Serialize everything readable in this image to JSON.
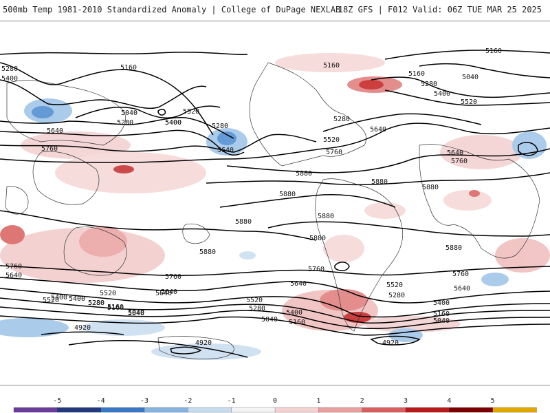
{
  "header": {
    "left_title": "500mb Temp 1981-2010 Standardized Anomaly | College of DuPage NEXLAB",
    "right_title": "18Z GFS | F012 Valid: 06Z TUE MAR 25 2025"
  },
  "colorbar": {
    "ticks": [
      "-5",
      "-4",
      "-3",
      "-2",
      "-1",
      "0",
      "1",
      "2",
      "3",
      "4",
      "5"
    ],
    "colors": [
      "#6a3d9a",
      "#24397d",
      "#3a78c5",
      "#86b3df",
      "#c8dcf0",
      "#f4f4f4",
      "#f4d2d2",
      "#eaa0a0",
      "#d95f5f",
      "#b81a1a",
      "#7a0000",
      "#e0a800"
    ]
  },
  "contour_labels": [
    "5280",
    "5400",
    "5160",
    "5040",
    "5280",
    "5400",
    "5520",
    "5640",
    "5760",
    "5280",
    "5400",
    "5640",
    "5160",
    "5280",
    "5520",
    "5640",
    "5760",
    "5880",
    "5880",
    "5880",
    "5880",
    "5880",
    "5880",
    "5880",
    "5160",
    "5040",
    "5280",
    "5400",
    "5520",
    "5640",
    "5760",
    "5880",
    "5880",
    "5760",
    "5640",
    "5760",
    "5640",
    "5520",
    "5400",
    "5280",
    "5160",
    "5040",
    "4920",
    "5760",
    "5640",
    "5520",
    "5400",
    "5280",
    "5160",
    "5040",
    "5640",
    "5520",
    "5400",
    "5280",
    "5160",
    "5040",
    "4920",
    "4920",
    "5760",
    "5640",
    "5520",
    "5400",
    "5280",
    "5160",
    "5040",
    "5160"
  ]
}
